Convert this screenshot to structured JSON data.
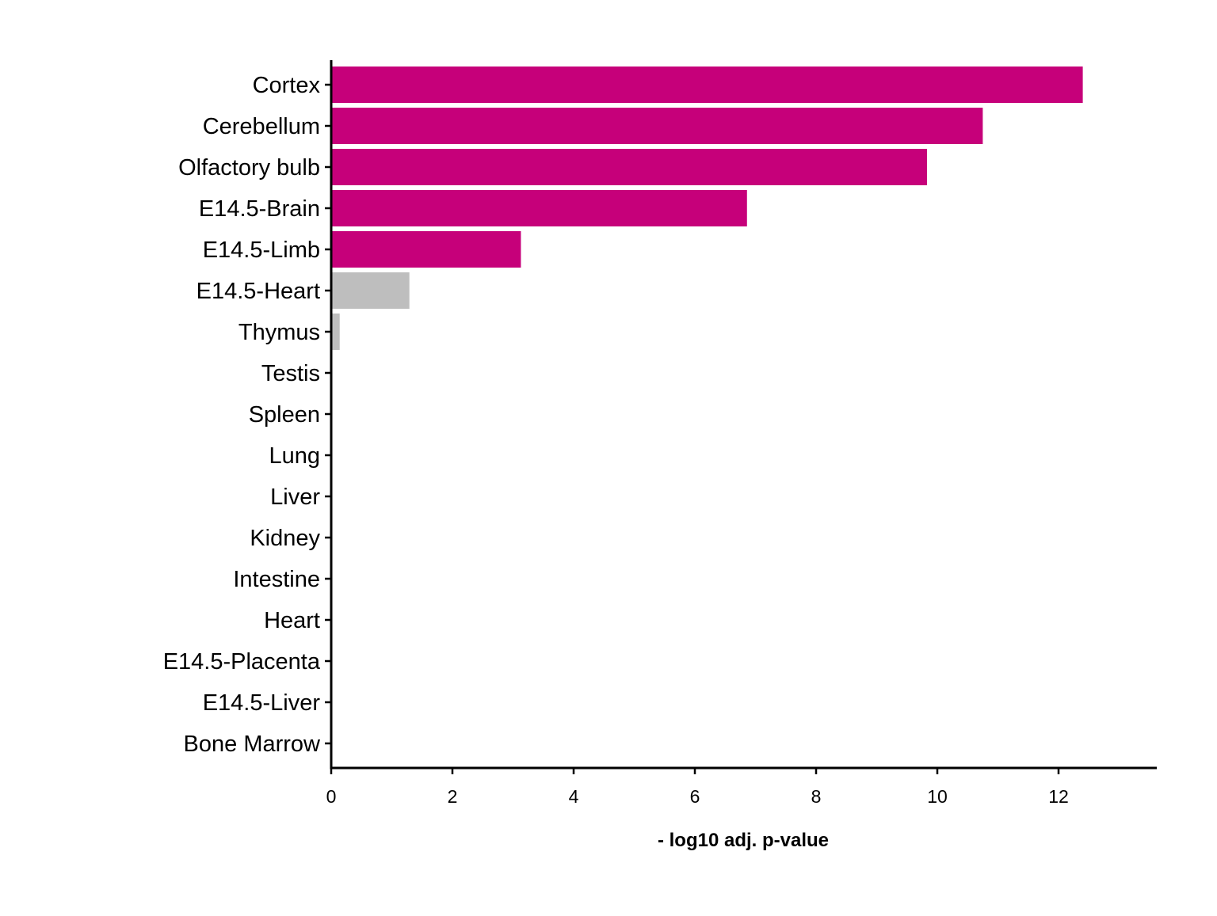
{
  "chart_data": {
    "type": "bar",
    "orientation": "horizontal",
    "title": "",
    "xlabel": "- log10 adj. p-value",
    "ylabel": "",
    "xlim": [
      0,
      13.6
    ],
    "x_ticks": [
      0,
      2,
      4,
      6,
      8,
      10,
      12
    ],
    "grid": false,
    "legend": "none",
    "categories": [
      "Cortex",
      "Cerebellum",
      "Olfactory bulb",
      "E14.5-Brain",
      "E14.5-Limb",
      "E14.5-Heart",
      "Thymus",
      "Testis",
      "Spleen",
      "Lung",
      "Liver",
      "Kidney",
      "Intestine",
      "Heart",
      "E14.5-Placenta",
      "E14.5-Liver",
      "Bone Marrow"
    ],
    "values": [
      12.4,
      10.75,
      9.83,
      6.86,
      3.13,
      1.29,
      0.14,
      0,
      0,
      0,
      0,
      0,
      0,
      0,
      0,
      0,
      0
    ],
    "significant": [
      true,
      true,
      true,
      true,
      true,
      false,
      false,
      false,
      false,
      false,
      false,
      false,
      false,
      false,
      false,
      false,
      false
    ],
    "colors": {
      "significant": "#C6007A",
      "not_significant": "#BEBEBE"
    }
  }
}
